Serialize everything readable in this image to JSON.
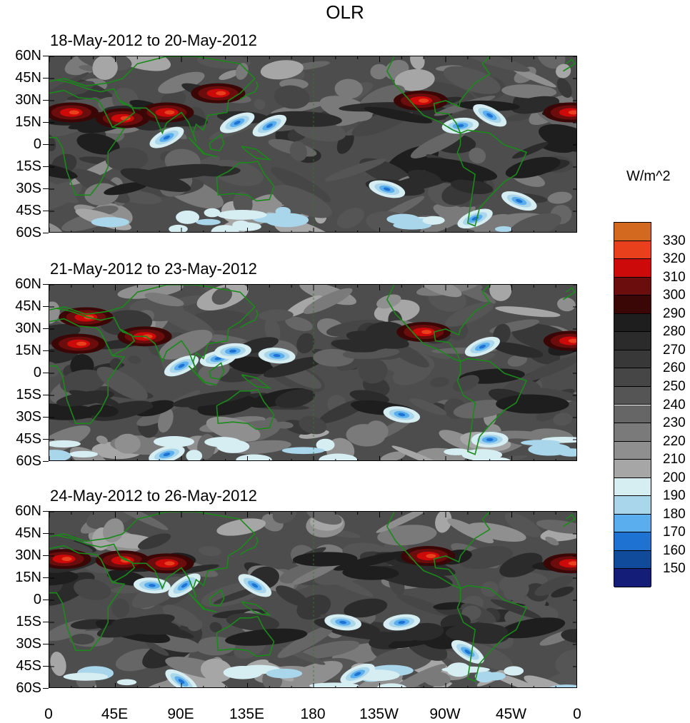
{
  "title": "OLR",
  "units": "W/m^2",
  "panels": [
    {
      "title": "18-May-2012 to 20-May-2012"
    },
    {
      "title": "21-May-2012 to 23-May-2012"
    },
    {
      "title": "24-May-2012 to 26-May-2012"
    }
  ],
  "lat_labels": [
    "60N",
    "45N",
    "30N",
    "15N",
    "0",
    "15S",
    "30S",
    "45S",
    "60S"
  ],
  "lon_labels": [
    "0",
    "45E",
    "90E",
    "135E",
    "180",
    "135W",
    "90W",
    "45W",
    "0"
  ],
  "colorbar": {
    "labels": [
      "330",
      "320",
      "310",
      "300",
      "290",
      "280",
      "270",
      "260",
      "250",
      "240",
      "230",
      "220",
      "210",
      "200",
      "190",
      "180",
      "170",
      "160",
      "150"
    ],
    "colors": [
      "#d2691e",
      "#e8401c",
      "#cc0a0a",
      "#6b0d0d",
      "#3a0606",
      "#1e1e1e",
      "#2b2b2b",
      "#383838",
      "#464646",
      "#555555",
      "#666666",
      "#7a7a7a",
      "#8f8f8f",
      "#a6a6a6",
      "#d6eef2",
      "#a9d6ea",
      "#5aaeee",
      "#1e72d2",
      "#0f4b9a",
      "#141e78"
    ]
  },
  "coastline_color": "#1a8a1a"
}
